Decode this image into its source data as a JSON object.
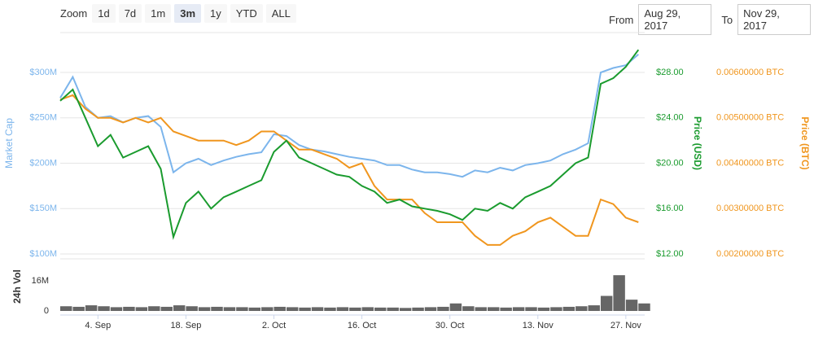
{
  "controls": {
    "zoom_label": "Zoom",
    "buttons": [
      "1d",
      "7d",
      "1m",
      "3m",
      "1y",
      "YTD",
      "ALL"
    ],
    "selected": "3m",
    "from_label": "From",
    "from": "Aug 29, 2017",
    "to_label": "To",
    "to": "Nov 29, 2017"
  },
  "chart_data": [
    {
      "type": "line",
      "x": [
        "2017-08-29",
        "2017-08-31",
        "2017-09-02",
        "2017-09-04",
        "2017-09-06",
        "2017-09-08",
        "2017-09-10",
        "2017-09-12",
        "2017-09-14",
        "2017-09-16",
        "2017-09-18",
        "2017-09-20",
        "2017-09-22",
        "2017-09-24",
        "2017-09-26",
        "2017-09-28",
        "2017-09-30",
        "2017-10-02",
        "2017-10-04",
        "2017-10-06",
        "2017-10-08",
        "2017-10-10",
        "2017-10-12",
        "2017-10-14",
        "2017-10-16",
        "2017-10-18",
        "2017-10-20",
        "2017-10-22",
        "2017-10-24",
        "2017-10-26",
        "2017-10-28",
        "2017-10-30",
        "2017-11-01",
        "2017-11-03",
        "2017-11-05",
        "2017-11-07",
        "2017-11-09",
        "2017-11-11",
        "2017-11-13",
        "2017-11-15",
        "2017-11-17",
        "2017-11-19",
        "2017-11-21",
        "2017-11-23",
        "2017-11-25",
        "2017-11-27",
        "2017-11-29"
      ],
      "xlim": [
        "2017-08-29",
        "2017-11-30"
      ],
      "series": [
        {
          "axis": "y",
          "color": "#7cb5ec",
          "values": [
            272,
            295,
            262,
            250,
            252,
            245,
            250,
            252,
            240,
            190,
            200,
            205,
            198,
            203,
            207,
            210,
            212,
            232,
            230,
            220,
            215,
            213,
            210,
            207,
            205,
            203,
            198,
            198,
            193,
            190,
            190,
            188,
            185,
            192,
            190,
            195,
            192,
            198,
            200,
            203,
            210,
            215,
            222,
            300,
            305,
            308,
            320
          ]
        },
        {
          "axis": "y3",
          "color": "#f0961e",
          "values": [
            0.0054,
            0.0055,
            0.0052,
            0.005,
            0.005,
            0.0049,
            0.005,
            0.0049,
            0.005,
            0.0047,
            0.0046,
            0.0045,
            0.0045,
            0.0045,
            0.0044,
            0.0045,
            0.0047,
            0.0047,
            0.0045,
            0.0043,
            0.0043,
            0.0042,
            0.0041,
            0.0039,
            0.004,
            0.0035,
            0.0032,
            0.0032,
            0.0032,
            0.0029,
            0.0027,
            0.0027,
            0.0027,
            0.0024,
            0.0022,
            0.0022,
            0.0024,
            0.0025,
            0.0027,
            0.0028,
            0.0026,
            0.0024,
            0.0024,
            0.0032,
            0.0031,
            0.0028,
            0.0027
          ]
        },
        {
          "axis": "y2",
          "color": "#1a9b2e",
          "values": [
            25.5,
            26.5,
            24,
            21.5,
            22.5,
            20.5,
            21,
            21.5,
            19.5,
            13.5,
            16.5,
            17.5,
            16,
            17,
            17.5,
            18,
            18.5,
            21,
            22,
            20.5,
            20,
            19.5,
            19,
            18.8,
            18,
            17.5,
            16.5,
            16.8,
            16.2,
            16,
            15.8,
            15.5,
            15,
            16,
            15.8,
            16.5,
            16,
            17,
            17.5,
            18,
            19,
            20,
            20.5,
            27,
            27.5,
            28.5,
            30
          ]
        }
      ],
      "ylabel": "Market Cap",
      "y2label": "Price (USD)",
      "y3label": "Price (BTC)",
      "ylim": [
        100,
        344
      ],
      "yticks": [
        {
          "value": 100,
          "label": "$100M"
        },
        {
          "value": 150,
          "label": "$150M"
        },
        {
          "value": 200,
          "label": "$200M"
        },
        {
          "value": 250,
          "label": "$250M"
        },
        {
          "value": 300,
          "label": "$300M"
        }
      ],
      "y2lim": [
        12,
        31.52
      ],
      "y2ticks": [
        {
          "value": 12,
          "label": "$12.00"
        },
        {
          "value": 16,
          "label": "$16.00"
        },
        {
          "value": 20,
          "label": "$20.00"
        },
        {
          "value": 24,
          "label": "$24.00"
        },
        {
          "value": 28,
          "label": "$28.00"
        }
      ],
      "y3lim": [
        0.002,
        0.00688
      ],
      "y3ticks": [
        {
          "value": 0.002,
          "label": "0.00200000 BTC"
        },
        {
          "value": 0.003,
          "label": "0.00300000 BTC"
        },
        {
          "value": 0.004,
          "label": "0.00400000 BTC"
        },
        {
          "value": 0.005,
          "label": "0.00500000 BTC"
        },
        {
          "value": 0.006,
          "label": "0.00600000 BTC"
        }
      ],
      "grid": true
    },
    {
      "type": "bar",
      "x": [
        "2017-08-29",
        "2017-08-31",
        "2017-09-02",
        "2017-09-04",
        "2017-09-06",
        "2017-09-08",
        "2017-09-10",
        "2017-09-12",
        "2017-09-14",
        "2017-09-16",
        "2017-09-18",
        "2017-09-20",
        "2017-09-22",
        "2017-09-24",
        "2017-09-26",
        "2017-09-28",
        "2017-09-30",
        "2017-10-02",
        "2017-10-04",
        "2017-10-06",
        "2017-10-08",
        "2017-10-10",
        "2017-10-12",
        "2017-10-14",
        "2017-10-16",
        "2017-10-18",
        "2017-10-20",
        "2017-10-22",
        "2017-10-24",
        "2017-10-26",
        "2017-10-28",
        "2017-10-30",
        "2017-11-01",
        "2017-11-03",
        "2017-11-05",
        "2017-11-07",
        "2017-11-09",
        "2017-11-11",
        "2017-11-13",
        "2017-11-15",
        "2017-11-17",
        "2017-11-19",
        "2017-11-21",
        "2017-11-23",
        "2017-11-25",
        "2017-11-27",
        "2017-11-29"
      ],
      "xlim": [
        "2017-08-29",
        "2017-11-30"
      ],
      "values": [
        2.5,
        2.2,
        3,
        2.5,
        2,
        2.2,
        2,
        2.5,
        2.2,
        3,
        2.5,
        2,
        2.2,
        2,
        2,
        1.8,
        2,
        2.2,
        2,
        1.8,
        2,
        1.8,
        2,
        1.8,
        2,
        1.8,
        1.8,
        1.6,
        1.8,
        2,
        2.2,
        4,
        2.5,
        2,
        2,
        1.8,
        2,
        2,
        1.8,
        2,
        2.2,
        2.5,
        3,
        8,
        19,
        6,
        4
      ],
      "color": "#666666",
      "ylabel": "24h Vol",
      "ylim": [
        0,
        27.7
      ],
      "yticks": [
        {
          "value": 0,
          "label": "0"
        },
        {
          "value": 16,
          "label": "16M"
        }
      ],
      "xticks": [
        {
          "value": "2017-09-04",
          "label": "4. Sep"
        },
        {
          "value": "2017-09-18",
          "label": "18. Sep"
        },
        {
          "value": "2017-10-02",
          "label": "2. Oct"
        },
        {
          "value": "2017-10-16",
          "label": "16. Oct"
        },
        {
          "value": "2017-10-30",
          "label": "30. Oct"
        },
        {
          "value": "2017-11-13",
          "label": "13. Nov"
        },
        {
          "value": "2017-11-27",
          "label": "27. Nov"
        }
      ]
    }
  ]
}
